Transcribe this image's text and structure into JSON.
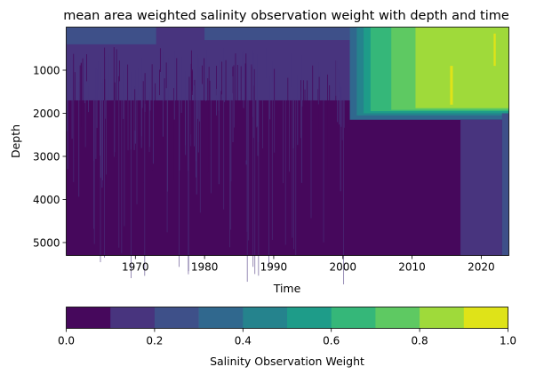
{
  "chart_data": {
    "type": "heatmap",
    "title": "mean area weighted salinity observation weight with depth and time",
    "xlabel": "Time",
    "ylabel": "Depth",
    "xlim": [
      1960,
      2024
    ],
    "ylim": [
      5300,
      0
    ],
    "x_ticks": [
      "1970",
      "1980",
      "1990",
      "2000",
      "2010",
      "2020"
    ],
    "y_ticks": [
      "1000",
      "2000",
      "3000",
      "4000",
      "5000"
    ],
    "colorbar": {
      "label": "Salinity Observation Weight",
      "range": [
        0,
        1
      ],
      "levels": [
        0.0,
        0.1,
        0.2,
        0.3,
        0.4,
        0.5,
        0.6,
        0.7,
        0.8,
        0.9,
        1.0
      ],
      "tick_labels": [
        "0.0",
        "0.2",
        "0.4",
        "0.6",
        "0.8",
        "1.0"
      ],
      "colors": [
        "#46085c",
        "#48347e",
        "#3e5089",
        "#30688e",
        "#25838d",
        "#1e9c89",
        "#35b779",
        "#5ec962",
        "#9fda3a",
        "#dfe318"
      ]
    },
    "regions": [
      {
        "x": [
          1960,
          2024
        ],
        "depth": [
          0,
          5300
        ],
        "weight": 0.05
      },
      {
        "x": [
          1960,
          2003
        ],
        "depth": [
          0,
          1700
        ],
        "weight": 0.15
      },
      {
        "x": [
          1960,
          1973
        ],
        "depth": [
          0,
          400
        ],
        "weight": 0.25
      },
      {
        "x": [
          1980,
          2001
        ],
        "depth": [
          0,
          300
        ],
        "weight": 0.25
      },
      {
        "x": [
          2001,
          2024
        ],
        "depth": [
          0,
          2150
        ],
        "weight": 0.35
      },
      {
        "x": [
          2002,
          2024
        ],
        "depth": [
          0,
          2050
        ],
        "weight": 0.45
      },
      {
        "x": [
          2003,
          2024
        ],
        "depth": [
          0,
          2000
        ],
        "weight": 0.55
      },
      {
        "x": [
          2004,
          2024
        ],
        "depth": [
          0,
          1950
        ],
        "weight": 0.65
      },
      {
        "x": [
          2007,
          2024
        ],
        "depth": [
          0,
          1920
        ],
        "weight": 0.75
      },
      {
        "x": [
          2010.5,
          2024
        ],
        "depth": [
          0,
          1880
        ],
        "weight": 0.85
      },
      {
        "x": [
          2015.5,
          2015.9
        ],
        "depth": [
          900,
          1800
        ],
        "weight": 0.95
      },
      {
        "x": [
          2021.8,
          2022.1
        ],
        "depth": [
          150,
          900
        ],
        "weight": 0.95
      },
      {
        "x": [
          2017,
          2023
        ],
        "depth": [
          2150,
          5300
        ],
        "weight": 0.15
      },
      {
        "x": [
          2023,
          2024
        ],
        "depth": [
          2000,
          5300
        ],
        "weight": 0.25
      }
    ]
  }
}
